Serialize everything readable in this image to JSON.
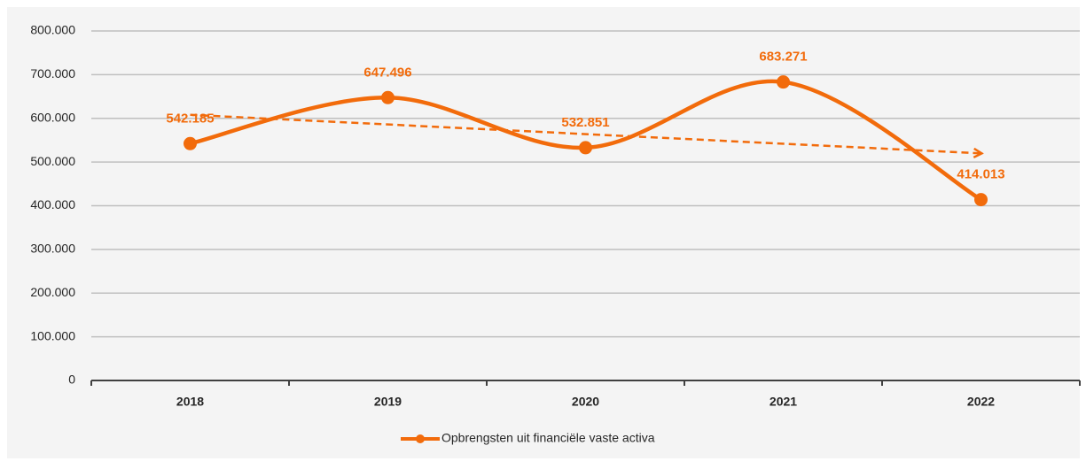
{
  "chart_data": {
    "type": "line",
    "categories": [
      "2018",
      "2019",
      "2020",
      "2021",
      "2022"
    ],
    "series": [
      {
        "name": "Opbrengsten uit financiële vaste activa",
        "color": "#f26b0b",
        "values": [
          542185,
          647496,
          532851,
          683271,
          414013
        ],
        "value_labels": [
          "542.185",
          "647.496",
          "532.851",
          "683.271",
          "414.013"
        ]
      }
    ],
    "ylim": [
      0,
      800000
    ],
    "yticks": [
      0,
      {
        "value": 100000,
        "label": "100.000"
      },
      {
        "value": 200000,
        "label": "200.000"
      },
      {
        "value": 300000,
        "label": "300.000"
      },
      {
        "value": 400000,
        "label": "400.000"
      },
      {
        "value": 500000,
        "label": "500.000"
      },
      {
        "value": 600000,
        "label": "600.000"
      },
      {
        "value": 700000,
        "label": "700.000"
      },
      {
        "value": 800000,
        "label": "800.000"
      }
    ],
    "grid": true,
    "smooth": true,
    "trendline": true,
    "legend": "bottom"
  }
}
